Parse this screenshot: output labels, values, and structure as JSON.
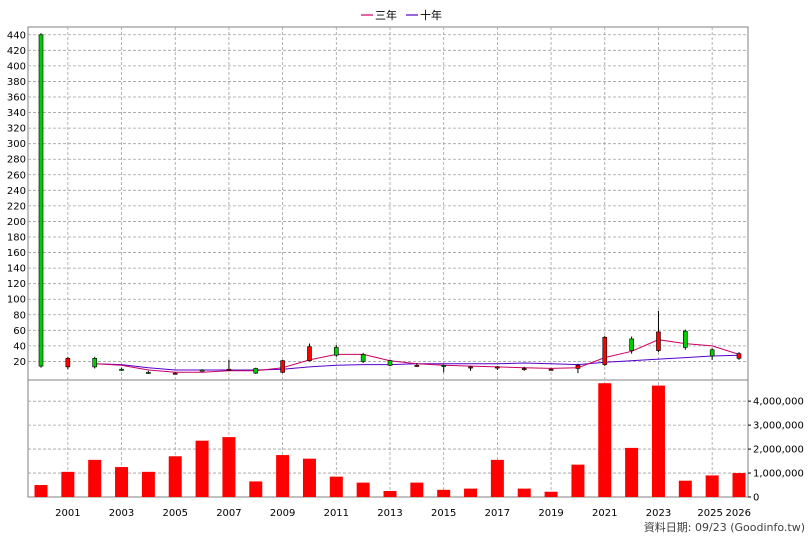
{
  "chart_data": {
    "type": "candlestick+bar",
    "legend": [
      {
        "label": "三年",
        "color": "#cc0066"
      },
      {
        "label": "十年",
        "color": "#5500cc"
      }
    ],
    "source_note": "資料日期: 09/23  (Goodinfo.tw)",
    "price_axis": {
      "ticks": [
        20,
        40,
        60,
        80,
        100,
        120,
        140,
        160,
        180,
        200,
        220,
        240,
        260,
        280,
        300,
        320,
        340,
        360,
        380,
        400,
        420,
        440
      ],
      "range": [
        0,
        450
      ]
    },
    "volume_axis": {
      "ticks": [
        0,
        1000000,
        2000000,
        3000000,
        4000000
      ],
      "tick_labels": [
        "0",
        "1,000,000",
        "2,000,000",
        "3,000,000",
        "4,000,000"
      ],
      "range": [
        0,
        4800000
      ]
    },
    "x_labels": [
      "2001",
      "2003",
      "2005",
      "2007",
      "2009",
      "2011",
      "2013",
      "2015",
      "2017",
      "2019",
      "2021",
      "2023",
      "2025",
      "2026"
    ],
    "years": [
      2000,
      2001,
      2002,
      2003,
      2004,
      2005,
      2006,
      2007,
      2008,
      2009,
      2010,
      2011,
      2012,
      2013,
      2014,
      2015,
      2016,
      2017,
      2018,
      2019,
      2020,
      2021,
      2022,
      2023,
      2024,
      2025,
      2026
    ],
    "candles": [
      {
        "year": 2000,
        "open": 440,
        "close": 14,
        "high": 442,
        "low": 12
      },
      {
        "year": 2001,
        "open": 13,
        "close": 24,
        "high": 26,
        "low": 10
      },
      {
        "year": 2002,
        "open": 24,
        "close": 13,
        "high": 26,
        "low": 11
      },
      {
        "year": 2003,
        "open": 10,
        "close": 9,
        "high": 12,
        "low": 8
      },
      {
        "year": 2004,
        "open": 6,
        "close": 5,
        "high": 8,
        "low": 4
      },
      {
        "year": 2005,
        "open": 5,
        "close": 5,
        "high": 6,
        "low": 4
      },
      {
        "year": 2006,
        "open": 9,
        "close": 8,
        "high": 10,
        "low": 7
      },
      {
        "year": 2007,
        "open": 9,
        "close": 10,
        "high": 22,
        "low": 8
      },
      {
        "year": 2008,
        "open": 11,
        "close": 5,
        "high": 12,
        "low": 4
      },
      {
        "year": 2009,
        "open": 6,
        "close": 21,
        "high": 22,
        "low": 5
      },
      {
        "year": 2010,
        "open": 21,
        "close": 39,
        "high": 43,
        "low": 20
      },
      {
        "year": 2011,
        "open": 38,
        "close": 28,
        "high": 41,
        "low": 26
      },
      {
        "year": 2012,
        "open": 29,
        "close": 20,
        "high": 31,
        "low": 18
      },
      {
        "year": 2013,
        "open": 21,
        "close": 15,
        "high": 22,
        "low": 14
      },
      {
        "year": 2014,
        "open": 15,
        "close": 15,
        "high": 18,
        "low": 13
      },
      {
        "year": 2015,
        "open": 15,
        "close": 14,
        "high": 16,
        "low": 6
      },
      {
        "year": 2016,
        "open": 13,
        "close": 13,
        "high": 14,
        "low": 8
      },
      {
        "year": 2017,
        "open": 13,
        "close": 13,
        "high": 14,
        "low": 9
      },
      {
        "year": 2018,
        "open": 11,
        "close": 11,
        "high": 13,
        "low": 8
      },
      {
        "year": 2019,
        "open": 10,
        "close": 10,
        "high": 11,
        "low": 9
      },
      {
        "year": 2020,
        "open": 11,
        "close": 15,
        "high": 17,
        "low": 5
      },
      {
        "year": 2021,
        "open": 16,
        "close": 51,
        "high": 53,
        "low": 14
      },
      {
        "year": 2022,
        "open": 49,
        "close": 34,
        "high": 52,
        "low": 30
      },
      {
        "year": 2023,
        "open": 34,
        "close": 58,
        "high": 85,
        "low": 32
      },
      {
        "year": 2024,
        "open": 59,
        "close": 38,
        "high": 61,
        "low": 35
      },
      {
        "year": 2025,
        "open": 35,
        "close": 27,
        "high": 37,
        "low": 22
      },
      {
        "year": 2026,
        "open": 24,
        "close": 30,
        "high": 32,
        "low": 22
      }
    ],
    "volume": [
      {
        "year": 2000,
        "value": 500000
      },
      {
        "year": 2001,
        "value": 1050000
      },
      {
        "year": 2002,
        "value": 1550000
      },
      {
        "year": 2003,
        "value": 1250000
      },
      {
        "year": 2004,
        "value": 1050000
      },
      {
        "year": 2005,
        "value": 1700000
      },
      {
        "year": 2006,
        "value": 2350000
      },
      {
        "year": 2007,
        "value": 2500000
      },
      {
        "year": 2008,
        "value": 650000
      },
      {
        "year": 2009,
        "value": 1750000
      },
      {
        "year": 2010,
        "value": 1600000
      },
      {
        "year": 2011,
        "value": 850000
      },
      {
        "year": 2012,
        "value": 600000
      },
      {
        "year": 2013,
        "value": 250000
      },
      {
        "year": 2014,
        "value": 600000
      },
      {
        "year": 2015,
        "value": 300000
      },
      {
        "year": 2016,
        "value": 350000
      },
      {
        "year": 2017,
        "value": 1550000
      },
      {
        "year": 2018,
        "value": 350000
      },
      {
        "year": 2019,
        "value": 220000
      },
      {
        "year": 2020,
        "value": 1350000
      },
      {
        "year": 2021,
        "value": 4750000
      },
      {
        "year": 2022,
        "value": 2050000
      },
      {
        "year": 2023,
        "value": 4650000
      },
      {
        "year": 2024,
        "value": 680000
      },
      {
        "year": 2025,
        "value": 900000
      },
      {
        "year": 2026,
        "value": 1000000
      }
    ],
    "ma_3yr": [
      {
        "year": 2002,
        "value": 17
      },
      {
        "year": 2003,
        "value": 15
      },
      {
        "year": 2004,
        "value": 9
      },
      {
        "year": 2005,
        "value": 6
      },
      {
        "year": 2006,
        "value": 6
      },
      {
        "year": 2007,
        "value": 8
      },
      {
        "year": 2008,
        "value": 8
      },
      {
        "year": 2009,
        "value": 12
      },
      {
        "year": 2010,
        "value": 22
      },
      {
        "year": 2011,
        "value": 29
      },
      {
        "year": 2012,
        "value": 29
      },
      {
        "year": 2013,
        "value": 21
      },
      {
        "year": 2014,
        "value": 17
      },
      {
        "year": 2015,
        "value": 15
      },
      {
        "year": 2016,
        "value": 14
      },
      {
        "year": 2017,
        "value": 13
      },
      {
        "year": 2018,
        "value": 12
      },
      {
        "year": 2019,
        "value": 11
      },
      {
        "year": 2020,
        "value": 12
      },
      {
        "year": 2021,
        "value": 25
      },
      {
        "year": 2022,
        "value": 33
      },
      {
        "year": 2023,
        "value": 48
      },
      {
        "year": 2024,
        "value": 43
      },
      {
        "year": 2025,
        "value": 40
      },
      {
        "year": 2026,
        "value": 29
      }
    ],
    "ma_10yr": [
      {
        "year": 2002,
        "value": 17
      },
      {
        "year": 2003,
        "value": 16
      },
      {
        "year": 2004,
        "value": 12
      },
      {
        "year": 2005,
        "value": 9
      },
      {
        "year": 2006,
        "value": 9
      },
      {
        "year": 2007,
        "value": 9
      },
      {
        "year": 2008,
        "value": 9
      },
      {
        "year": 2009,
        "value": 10
      },
      {
        "year": 2010,
        "value": 13
      },
      {
        "year": 2011,
        "value": 15
      },
      {
        "year": 2012,
        "value": 16
      },
      {
        "year": 2013,
        "value": 16
      },
      {
        "year": 2014,
        "value": 17
      },
      {
        "year": 2015,
        "value": 17
      },
      {
        "year": 2016,
        "value": 17
      },
      {
        "year": 2017,
        "value": 17
      },
      {
        "year": 2018,
        "value": 18
      },
      {
        "year": 2019,
        "value": 17
      },
      {
        "year": 2020,
        "value": 16
      },
      {
        "year": 2021,
        "value": 19
      },
      {
        "year": 2022,
        "value": 21
      },
      {
        "year": 2023,
        "value": 23
      },
      {
        "year": 2024,
        "value": 25
      },
      {
        "year": 2025,
        "value": 27
      },
      {
        "year": 2026,
        "value": 28
      }
    ],
    "colors": {
      "up": "#ff0000",
      "down": "#00cc00",
      "volume": "#ff0000",
      "grid": "#a0a0a0"
    }
  }
}
